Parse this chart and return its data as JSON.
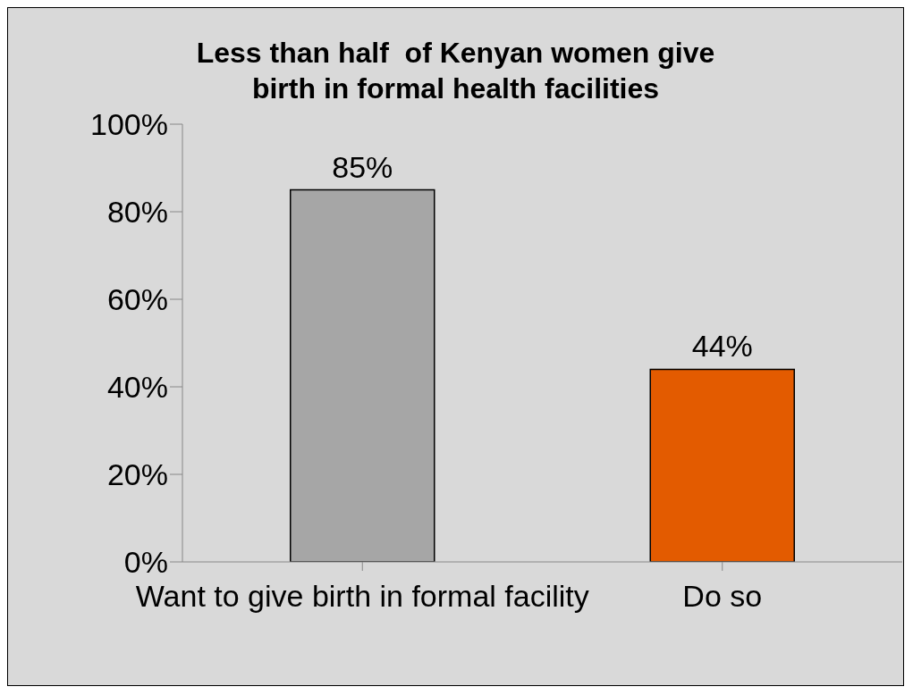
{
  "chart_data": {
    "type": "bar",
    "title": "Less than half  of Kenyan women give birth in formal health facilities",
    "categories": [
      "Want to give birth in formal facility",
      "Do so"
    ],
    "values": [
      85,
      44
    ],
    "colors": [
      "#a6a6a6",
      "#e35b00"
    ],
    "value_labels": [
      "85%",
      "44%"
    ],
    "ylim": [
      0,
      100
    ],
    "yticks": [
      {
        "value": 0,
        "label": "0%"
      },
      {
        "value": 20,
        "label": "20%"
      },
      {
        "value": 40,
        "label": "40%"
      },
      {
        "value": 60,
        "label": "60%"
      },
      {
        "value": 80,
        "label": "80%"
      },
      {
        "value": 100,
        "label": "100%"
      }
    ],
    "grid": false,
    "legend": false
  }
}
